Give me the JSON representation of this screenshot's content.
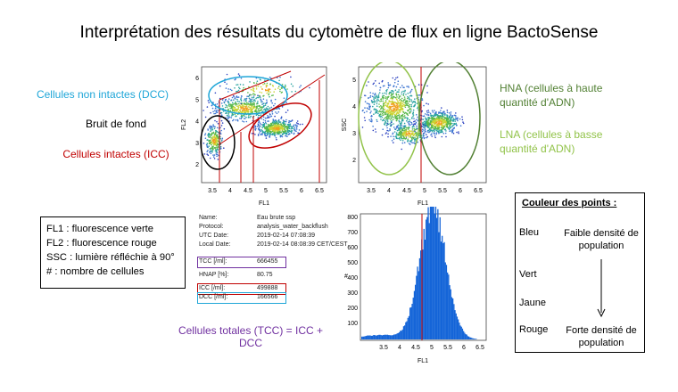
{
  "title": "Interprétation des résultats du cytomètre de flux en ligne BactoSense",
  "left_labels": {
    "dcc": "Cellules non intactes (DCC)",
    "noise": "Bruit de fond",
    "icc": "Cellules intactes (ICC)"
  },
  "right_labels": {
    "hna": "HNA (cellules à haute quantité d'ADN)",
    "lna": "LNA (cellules à basse quantité d'ADN)"
  },
  "legend": [
    "FL1 : fluorescence verte",
    "FL2 : fluorescence rouge",
    "SSC : lumière réfléchie à 90°",
    "# :  nombre de cellules"
  ],
  "metadata": [
    {
      "key": "Name:",
      "value": "Eau brute ssp"
    },
    {
      "key": "Protocol:",
      "value": "analysis_water_backflush"
    },
    {
      "key": "UTC Date:",
      "value": "2019-02-14 07:08:39"
    },
    {
      "key": "Local Date:",
      "value": "2019-02-14 08:08:39 CET/CEST"
    },
    {
      "key": "TCC [/ml]:",
      "value": "666455"
    },
    {
      "key": "HNAP [%]:",
      "value": "80.75"
    },
    {
      "key": "ICC [/ml]:",
      "value": "499888"
    },
    {
      "key": "DCC [/ml]:",
      "value": "166566"
    }
  ],
  "tcc_formula": "Cellules totales (TCC) = ICC + DCC",
  "points_box": {
    "title": "Couleur des points :",
    "colors": [
      "Bleu",
      "Vert",
      "Jaune",
      "Rouge"
    ],
    "low": "Faible densité de population",
    "high": "Forte densité de population"
  },
  "plots": {
    "fl2_fl1": {
      "xlabel": "FL1",
      "ylabel": "FL2",
      "xticks": [
        "3.5",
        "4",
        "4.5",
        "5",
        "5.5",
        "6",
        "6.5"
      ],
      "yticks": [
        "2",
        "3",
        "4",
        "5",
        "6"
      ]
    },
    "ssc_fl1": {
      "xlabel": "FL1",
      "ylabel": "SSC",
      "xticks": [
        "3.5",
        "4",
        "4.5",
        "5",
        "5.5",
        "6",
        "6.5"
      ],
      "yticks": [
        "2",
        "3",
        "4",
        "5"
      ]
    },
    "hist": {
      "xlabel": "FL1",
      "ylabel": "#",
      "xticks": [
        "3.5",
        "4",
        "4.5",
        "5",
        "5.5",
        "6",
        "6.5"
      ],
      "yticks": [
        "100",
        "200",
        "300",
        "400",
        "500",
        "600",
        "700",
        "800"
      ]
    }
  },
  "colors": {
    "dcc": "#1fa6d8",
    "icc": "#c00000",
    "hna": "#538135",
    "lna": "#92c34a",
    "tcc": "#7030a0",
    "hist": "#1565d8"
  }
}
